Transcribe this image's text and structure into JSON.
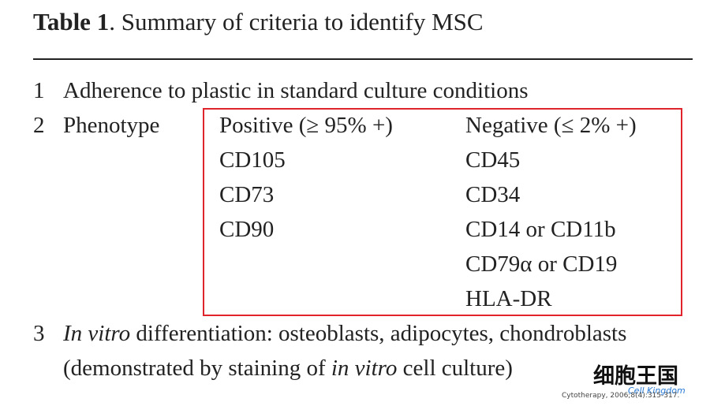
{
  "header": {
    "label": "Table 1",
    "title": ". Summary of criteria to identify MSC"
  },
  "rows": [
    {
      "number": "1",
      "text": "Adherence to plastic in standard culture conditions"
    },
    {
      "number": "2",
      "text": "Phenotype",
      "positive": {
        "heading": "Positive (≥ 95% +)",
        "markers": [
          "CD105",
          "CD73",
          "CD90"
        ]
      },
      "negative": {
        "heading": "Negative (≤ 2% +)",
        "markers": [
          "CD45",
          "CD34",
          "CD14 or CD11b",
          "CD79α or CD19",
          "HLA-DR"
        ]
      }
    },
    {
      "number": "3",
      "lines": [
        [
          "In vitro",
          " differentiation: osteoblasts, adipocytes, chondroblasts"
        ],
        [
          "(demonstrated by staining of ",
          "in vitro",
          " cell culture)"
        ]
      ]
    }
  ],
  "watermark": {
    "logo": "细胞王国",
    "subtitle": "Cell Kingdom",
    "citation": "Cytotherapy, 2006;8(4):315-317."
  }
}
